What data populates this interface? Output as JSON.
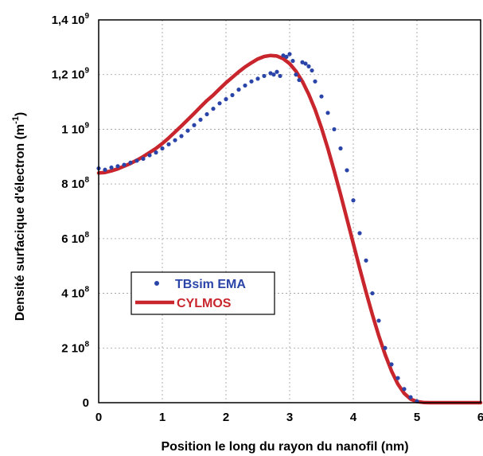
{
  "chart_data": {
    "type": "scatter",
    "xlabel": "Position le long du rayon du nanofil  (nm)",
    "ylabel_main": "Densité surfacique d'électron  (m",
    "ylabel_exp": "-1",
    "ylabel_close": ")",
    "xlim": [
      0,
      6
    ],
    "ylim": [
      0,
      1400000000
    ],
    "grid": true,
    "legend_position": "left",
    "x_ticks": [
      {
        "value": 0,
        "label": "0"
      },
      {
        "value": 1,
        "label": "1"
      },
      {
        "value": 2,
        "label": "2"
      },
      {
        "value": 3,
        "label": "3"
      },
      {
        "value": 4,
        "label": "4"
      },
      {
        "value": 5,
        "label": "5"
      },
      {
        "value": 6,
        "label": "6"
      }
    ],
    "y_ticks": [
      {
        "value": 0,
        "mant": "0",
        "exp": ""
      },
      {
        "value": 200000000,
        "mant": "2 10",
        "exp": "8"
      },
      {
        "value": 400000000,
        "mant": "4 10",
        "exp": "8"
      },
      {
        "value": 600000000,
        "mant": "6 10",
        "exp": "8"
      },
      {
        "value": 800000000,
        "mant": "8 10",
        "exp": "8"
      },
      {
        "value": 1000000000,
        "mant": "1 10",
        "exp": "9"
      },
      {
        "value": 1200000000,
        "mant": "1,2 10",
        "exp": "9"
      },
      {
        "value": 1400000000,
        "mant": "1,4 10",
        "exp": "9"
      }
    ],
    "series": [
      {
        "name": "TBsim EMA",
        "style": "dots",
        "color": "#2a44a8",
        "x": [
          0.0,
          0.1,
          0.2,
          0.3,
          0.4,
          0.5,
          0.6,
          0.7,
          0.8,
          0.9,
          1.0,
          1.1,
          1.2,
          1.3,
          1.4,
          1.5,
          1.6,
          1.7,
          1.8,
          1.9,
          2.0,
          2.1,
          2.2,
          2.3,
          2.4,
          2.5,
          2.6,
          2.7,
          2.75,
          2.8,
          2.85,
          2.9,
          2.95,
          3.0,
          3.05,
          3.1,
          3.15,
          3.2,
          3.25,
          3.3,
          3.35,
          3.4,
          3.5,
          3.6,
          3.7,
          3.8,
          3.9,
          4.0,
          4.1,
          4.2,
          4.3,
          4.4,
          4.5,
          4.6,
          4.7,
          4.8,
          4.9,
          5.0
        ],
        "y": [
          857000000,
          852000000,
          860000000,
          865000000,
          870000000,
          878000000,
          885000000,
          892000000,
          905000000,
          915000000,
          930000000,
          945000000,
          960000000,
          975000000,
          995000000,
          1015000000,
          1035000000,
          1055000000,
          1075000000,
          1095000000,
          1110000000,
          1125000000,
          1145000000,
          1160000000,
          1175000000,
          1185000000,
          1195000000,
          1205000000,
          1200000000,
          1210000000,
          1195000000,
          1270000000,
          1265000000,
          1275000000,
          1250000000,
          1200000000,
          1180000000,
          1245000000,
          1240000000,
          1230000000,
          1215000000,
          1175000000,
          1120000000,
          1060000000,
          1000000000,
          930000000,
          850000000,
          740000000,
          620000000,
          520000000,
          400000000,
          300000000,
          200000000,
          140000000,
          90000000,
          50000000,
          20000000,
          5000000
        ]
      },
      {
        "name": "CYLMOS",
        "style": "line",
        "color": "#c8262c",
        "x": [
          0.0,
          0.1,
          0.2,
          0.3,
          0.4,
          0.5,
          0.6,
          0.7,
          0.8,
          0.9,
          1.0,
          1.1,
          1.2,
          1.3,
          1.4,
          1.5,
          1.6,
          1.7,
          1.8,
          1.9,
          2.0,
          2.1,
          2.2,
          2.3,
          2.4,
          2.5,
          2.6,
          2.7,
          2.8,
          2.9,
          3.0,
          3.1,
          3.2,
          3.3,
          3.4,
          3.5,
          3.6,
          3.7,
          3.8,
          3.9,
          4.0,
          4.1,
          4.2,
          4.3,
          4.4,
          4.5,
          4.6,
          4.7,
          4.8,
          4.9,
          5.0,
          5.1,
          5.2,
          5.4,
          5.6,
          5.8,
          6.0
        ],
        "y": [
          840000000,
          842000000,
          848000000,
          855000000,
          865000000,
          875000000,
          887000000,
          900000000,
          915000000,
          930000000,
          948000000,
          968000000,
          990000000,
          1012000000,
          1035000000,
          1058000000,
          1082000000,
          1105000000,
          1125000000,
          1148000000,
          1170000000,
          1190000000,
          1210000000,
          1228000000,
          1243000000,
          1257000000,
          1266000000,
          1270000000,
          1268000000,
          1258000000,
          1240000000,
          1212000000,
          1175000000,
          1128000000,
          1072000000,
          1005000000,
          930000000,
          848000000,
          762000000,
          672000000,
          582000000,
          492000000,
          405000000,
          322000000,
          245000000,
          176000000,
          116000000,
          68000000,
          34000000,
          13000000,
          4000000,
          1000000,
          0,
          0,
          0,
          0,
          0
        ]
      }
    ]
  }
}
